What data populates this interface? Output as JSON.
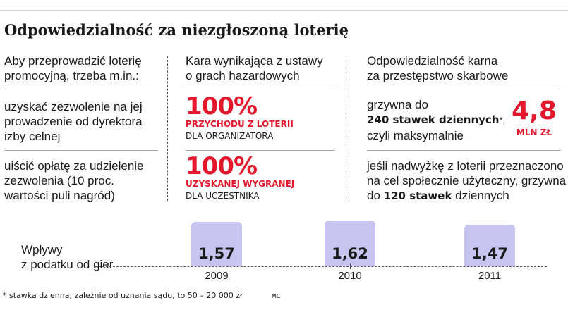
{
  "title": "Odpowiedzialność za niezgłoszoną loterię",
  "col1": {
    "header_l1": "Aby przeprowadzić loterię",
    "header_l2": "promocyjną, trzeba m.in.:",
    "item1_l1": "uzyskać zezwolenie na jej",
    "item1_l2": "prowadzenie od dyrektora",
    "item1_l3": "izby celnej",
    "item2_l1": "uiścić opłatę za udzielenie",
    "item2_l2": "zezwolenia (10 proc.",
    "item2_l3": "wartości puli nagród)"
  },
  "col2": {
    "header_l1": "Kara wynikająca z ustawy",
    "header_l2": "o grach hazardowych",
    "pct1": "100%",
    "pct1_cap": "PRZYCHODU Z LOTERII",
    "pct1_sub": "DLA ORGANIZATORA",
    "pct2": "100%",
    "pct2_cap_l1": "UZYSKANEJ WYGRANEJ",
    "pct2_sub": "DLA UCZESTNIKA"
  },
  "col3": {
    "header_l1": "Odpowiedzialność karna",
    "header_l2": "za przestępstwo skarbowe",
    "fine_l1": "grzywna do",
    "fine_bold": "240 stawek dziennych",
    "fine_star": "*,",
    "fine_l3": "czyli maksymalnie",
    "big_value": "4,8",
    "big_unit": "MLN ZŁ",
    "surplus_l1": "jeśli nadwyżkę z loterii przeznaczono",
    "surplus_l2": "na cel społecznie użyteczny, grzywna",
    "surplus_l3a": "do",
    "surplus_bold": "120 stawek",
    "surplus_l3b": "dziennych"
  },
  "chart_label_l1": "Wpływy",
  "chart_label_l2": "z podatku od gier",
  "chart_data": {
    "type": "bar",
    "categories": [
      "2009",
      "2010",
      "2011"
    ],
    "values": [
      1.57,
      1.62,
      1.47
    ],
    "value_labels": [
      "1,57",
      "1,62",
      "1,47"
    ],
    "bar_color": "#c7c5ef"
  },
  "footnote": "* stawka dzienna, zależnie od uznania sądu, to 50 – 20 000 zł",
  "credit": "MC",
  "accent_color": "#e3182d"
}
